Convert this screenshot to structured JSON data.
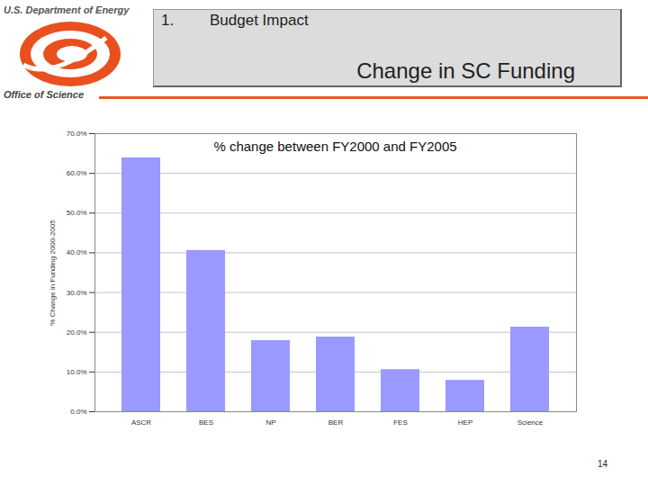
{
  "header": {
    "organization": "U.S. Department of Energy",
    "office": "Office of Science",
    "section_number": "1.",
    "section_title": "Budget Impact",
    "slide_title": "Change in SC Funding"
  },
  "page_number": 14,
  "chart_data": {
    "type": "bar",
    "title": "% change between FY2000 and FY2005",
    "y_label": "% Change in Funding 2000-2005",
    "categories": [
      "ASCR",
      "BES",
      "NP",
      "BER",
      "FES",
      "HEP",
      "Science"
    ],
    "values": [
      63.9,
      40.6,
      17.9,
      18.8,
      10.6,
      7.9,
      21.3
    ],
    "color": "#9999ff",
    "ylim": [
      0,
      70
    ],
    "yticks": [
      {
        "value": 0,
        "label": "0.0%"
      },
      {
        "value": 10,
        "label": "10.0%"
      },
      {
        "value": 20,
        "label": "20.0%"
      },
      {
        "value": 30,
        "label": "30.0%"
      },
      {
        "value": 40,
        "label": "40.0%"
      },
      {
        "value": 50,
        "label": "50.0%"
      },
      {
        "value": 60,
        "label": "60.0%"
      },
      {
        "value": 70,
        "label": "70.0%"
      }
    ],
    "grid": true
  }
}
